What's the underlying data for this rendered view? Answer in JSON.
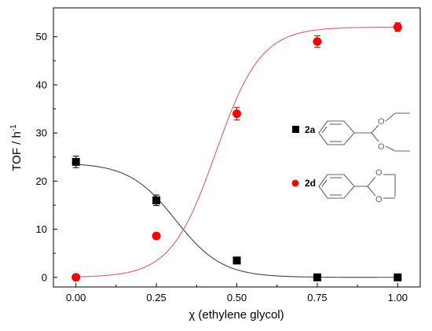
{
  "chart_data": {
    "type": "scatter",
    "xlabel": "χ (ethylene glycol)",
    "ylabel_main": "TOF / h",
    "ylabel_sup": "-1",
    "xlim": [
      -0.07,
      1.07
    ],
    "ylim": [
      -2,
      56
    ],
    "x_ticks": [
      0.0,
      0.25,
      0.5,
      0.75,
      1.0
    ],
    "x_tick_labels": [
      "0.00",
      "0.25",
      "0.50",
      "0.75",
      "1.00"
    ],
    "y_ticks": [
      0,
      10,
      20,
      30,
      40,
      50
    ],
    "y_tick_labels": [
      "0",
      "10",
      "20",
      "30",
      "40",
      "50"
    ],
    "grid": false,
    "legend_placement": "right-middle",
    "series": [
      {
        "name": "2a",
        "marker": "square",
        "color": "#000000",
        "line_color": "#444444",
        "x": [
          0.0,
          0.25,
          0.5,
          0.75,
          1.0
        ],
        "y": [
          24.0,
          16.0,
          3.5,
          0.0,
          0.0
        ],
        "err": [
          1.2,
          1.1,
          0.4,
          0.2,
          0.2
        ],
        "fit": {
          "A1": 23.8,
          "A2": 0.0,
          "x0": 0.31,
          "dx": 0.072
        }
      },
      {
        "name": "2d",
        "marker": "circle",
        "color": "#ff0000",
        "line_color": "#e06060",
        "x": [
          0.0,
          0.25,
          0.5,
          0.75,
          1.0
        ],
        "y": [
          0.0,
          8.6,
          34.0,
          49.0,
          52.0
        ],
        "err": [
          0.3,
          0.3,
          1.3,
          1.2,
          0.9
        ],
        "fit": {
          "A1": 0.0,
          "A2": 52.0,
          "x0": 0.435,
          "dx": 0.07
        }
      }
    ],
    "structure_labels": {
      "oxygen": "O"
    }
  }
}
